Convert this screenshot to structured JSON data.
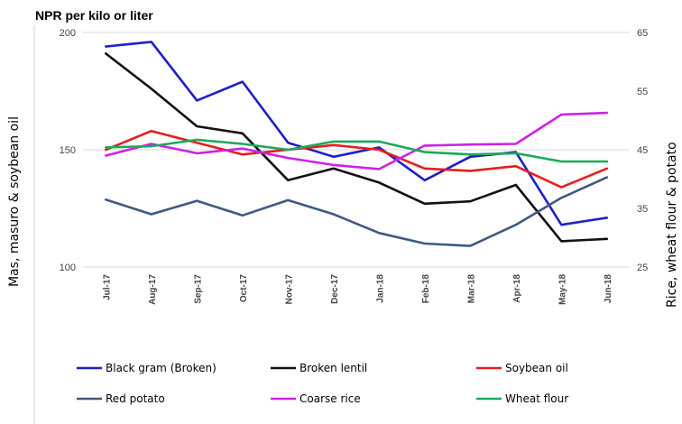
{
  "chart_data": {
    "type": "line",
    "title": "NPR per kilo or liter",
    "ylabel_left": "Mas, masuro & soybean oil",
    "ylabel_right": "Rice, wheat flour & potato",
    "categories": [
      "Jul-17",
      "Aug-17",
      "Sep-17",
      "Oct-17",
      "Nov-17",
      "Dec-17",
      "Jan-18",
      "Feb-18",
      "Mar-18",
      "Apr-18",
      "May-18",
      "Jun-18"
    ],
    "ylim_left": [
      100,
      200
    ],
    "yticks_left": [
      "100",
      "150",
      "200"
    ],
    "ylim_right": [
      25,
      65
    ],
    "yticks_right": [
      "25",
      "35",
      "45",
      "55",
      "65"
    ],
    "grid": "horizontal",
    "legend_position": "bottom",
    "series": [
      {
        "name": "Black gram (Broken)",
        "axis": "left",
        "color": "#1f1fc8",
        "values": [
          194,
          196,
          171,
          179,
          153,
          147,
          151,
          137,
          147,
          149,
          118,
          121
        ]
      },
      {
        "name": "Broken lentil",
        "axis": "left",
        "color": "#111111",
        "values": [
          191,
          176,
          160,
          157,
          137,
          142,
          136,
          127,
          128,
          135,
          111,
          112
        ]
      },
      {
        "name": "Soybean oil",
        "axis": "left",
        "color": "#e81c1c",
        "values": [
          150,
          158,
          153,
          148,
          150,
          152,
          150,
          142,
          141,
          143,
          134,
          142
        ]
      },
      {
        "name": "Red potato",
        "axis": "right",
        "color": "#3f5a80",
        "values": [
          36.5,
          34.0,
          36.3,
          33.8,
          36.4,
          34.0,
          30.8,
          29.0,
          28.6,
          32.2,
          36.8,
          40.3
        ]
      },
      {
        "name": "Coarse rice",
        "axis": "right",
        "color": "#cc22e6",
        "values": [
          44.0,
          46.0,
          44.4,
          45.2,
          43.6,
          42.4,
          41.7,
          45.7,
          45.9,
          46.0,
          51.0,
          51.3
        ]
      },
      {
        "name": "Wheat flour",
        "axis": "right",
        "color": "#1aaa5a",
        "values": [
          45.4,
          45.6,
          46.7,
          46.0,
          45.0,
          46.4,
          46.4,
          44.6,
          44.2,
          44.4,
          43.0,
          43.0
        ]
      }
    ]
  }
}
